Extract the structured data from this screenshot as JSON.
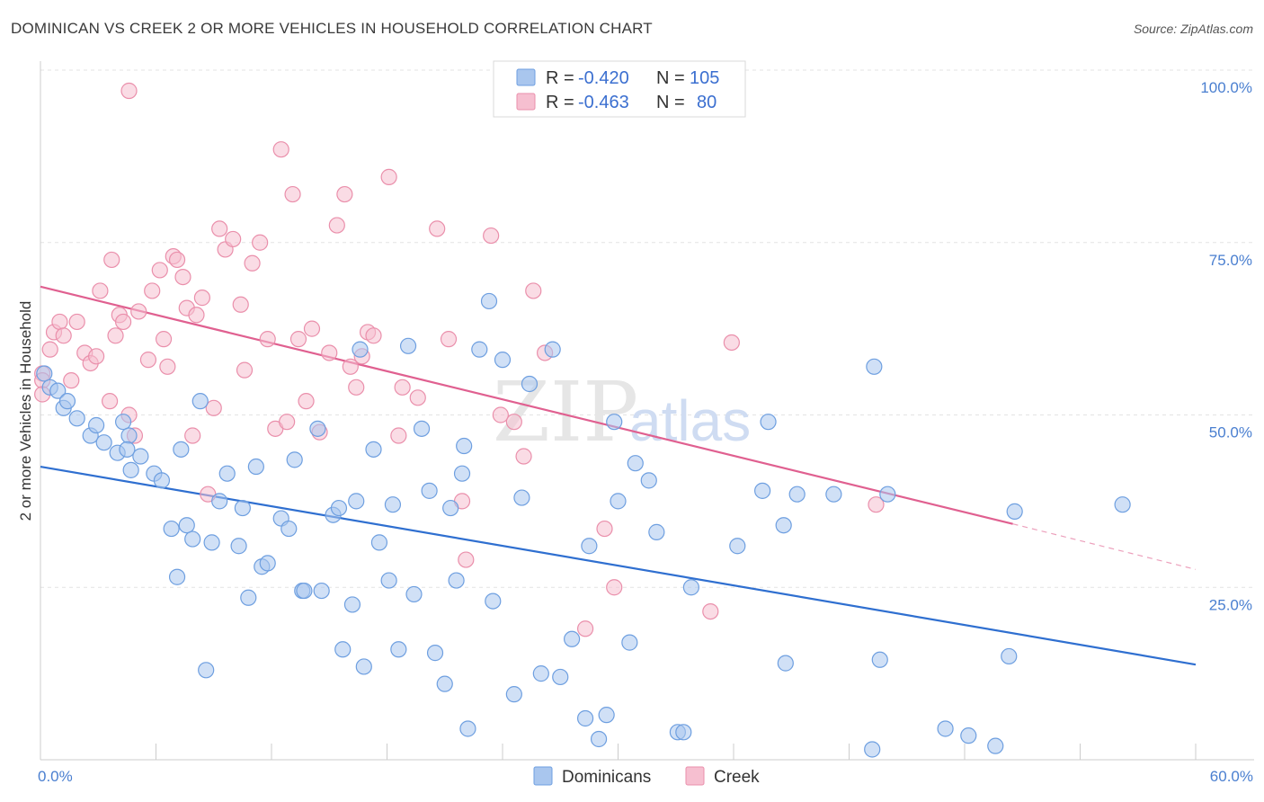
{
  "title": "DOMINICAN VS CREEK 2 OR MORE VEHICLES IN HOUSEHOLD CORRELATION CHART",
  "source": "Source: ZipAtlas.com",
  "watermark": {
    "zip": "ZIP",
    "atlas": "atlas"
  },
  "colors": {
    "dominicans_fill": "#a9c6ee",
    "dominicans_stroke": "#6e9fe0",
    "dominicans_line": "#2f6fd0",
    "creek_fill": "#f6bfd0",
    "creek_stroke": "#ea8fab",
    "creek_line": "#e06090",
    "grid": "#e3e3e3",
    "tick_text": "#4a7fd0"
  },
  "legend": {
    "rows": [
      {
        "r_label": "R =",
        "r_value": "-0.420",
        "n_label": "N =",
        "n_value": "105"
      },
      {
        "r_label": "R =",
        "r_value": "-0.463",
        "n_label": "N =",
        "n_value": "80"
      }
    ]
  },
  "chart_data": {
    "type": "scatter",
    "title": "DOMINICAN VS CREEK 2 OR MORE VEHICLES IN HOUSEHOLD CORRELATION CHART",
    "xlabel": "",
    "ylabel": "2 or more Vehicles in Household",
    "xlim": [
      0,
      60
    ],
    "ylim": [
      0,
      100
    ],
    "x_tick_labels": [
      "0.0%",
      "60.0%"
    ],
    "y_ticks": [
      25,
      50,
      75,
      100
    ],
    "y_tick_labels": [
      "25.0%",
      "50.0%",
      "75.0%",
      "100.0%"
    ],
    "grid": true,
    "legend_position": "top-center",
    "series": [
      {
        "name": "Dominicans",
        "r": -0.42,
        "n": 105,
        "trend": {
          "x": [
            0,
            60
          ],
          "y": [
            42.5,
            13.8
          ]
        },
        "points": [
          [
            0.2,
            56
          ],
          [
            0.5,
            54
          ],
          [
            0.9,
            53.5
          ],
          [
            1.2,
            51
          ],
          [
            1.4,
            52
          ],
          [
            1.9,
            49.5
          ],
          [
            2.6,
            47
          ],
          [
            2.9,
            48.5
          ],
          [
            3.3,
            46
          ],
          [
            4.0,
            44.5
          ],
          [
            4.3,
            49
          ],
          [
            4.6,
            47
          ],
          [
            4.5,
            45
          ],
          [
            4.7,
            42
          ],
          [
            5.2,
            44
          ],
          [
            5.9,
            41.5
          ],
          [
            6.3,
            40.5
          ],
          [
            6.8,
            33.5
          ],
          [
            7.1,
            26.5
          ],
          [
            7.3,
            45
          ],
          [
            7.6,
            34
          ],
          [
            7.9,
            32
          ],
          [
            8.3,
            52
          ],
          [
            8.6,
            13
          ],
          [
            8.9,
            31.5
          ],
          [
            9.3,
            37.5
          ],
          [
            9.7,
            41.5
          ],
          [
            10.3,
            31
          ],
          [
            10.5,
            36.5
          ],
          [
            10.8,
            23.5
          ],
          [
            11.2,
            42.5
          ],
          [
            11.5,
            28
          ],
          [
            11.8,
            28.5
          ],
          [
            12.5,
            35
          ],
          [
            12.9,
            33.5
          ],
          [
            13.2,
            43.5
          ],
          [
            13.6,
            24.5
          ],
          [
            13.7,
            24.5
          ],
          [
            14.4,
            48
          ],
          [
            14.6,
            24.5
          ],
          [
            15.2,
            35.5
          ],
          [
            15.5,
            36.5
          ],
          [
            15.7,
            16
          ],
          [
            16.2,
            22.5
          ],
          [
            16.4,
            37.5
          ],
          [
            16.6,
            59.5
          ],
          [
            16.8,
            13.5
          ],
          [
            17.3,
            45
          ],
          [
            17.6,
            31.5
          ],
          [
            18.1,
            26
          ],
          [
            18.3,
            37
          ],
          [
            18.6,
            16
          ],
          [
            19.1,
            60
          ],
          [
            19.4,
            24
          ],
          [
            19.8,
            48
          ],
          [
            20.2,
            39
          ],
          [
            20.5,
            15.5
          ],
          [
            21.0,
            11
          ],
          [
            21.3,
            36.5
          ],
          [
            21.6,
            26
          ],
          [
            21.9,
            41.5
          ],
          [
            22.0,
            45.5
          ],
          [
            22.2,
            4.5
          ],
          [
            22.8,
            59.5
          ],
          [
            23.3,
            66.5
          ],
          [
            23.5,
            23
          ],
          [
            24.0,
            58
          ],
          [
            24.6,
            9.5
          ],
          [
            25.0,
            38
          ],
          [
            25.4,
            54.5
          ],
          [
            26.0,
            12.5
          ],
          [
            26.6,
            59.5
          ],
          [
            27.0,
            12
          ],
          [
            27.6,
            17.5
          ],
          [
            28.3,
            6
          ],
          [
            28.5,
            31
          ],
          [
            29.0,
            3
          ],
          [
            29.4,
            6.5
          ],
          [
            29.8,
            49
          ],
          [
            30.0,
            37.5
          ],
          [
            30.6,
            17
          ],
          [
            30.9,
            43
          ],
          [
            31.6,
            40.5
          ],
          [
            32.0,
            33
          ],
          [
            33.1,
            4
          ],
          [
            33.4,
            4
          ],
          [
            33.8,
            25
          ],
          [
            36.2,
            31
          ],
          [
            37.5,
            39
          ],
          [
            37.8,
            49
          ],
          [
            38.6,
            34
          ],
          [
            38.7,
            14
          ],
          [
            39.3,
            38.5
          ],
          [
            41.2,
            38.5
          ],
          [
            43.2,
            1.5
          ],
          [
            43.3,
            57
          ],
          [
            43.6,
            14.5
          ],
          [
            44.0,
            38.5
          ],
          [
            47.0,
            4.5
          ],
          [
            48.2,
            3.5
          ],
          [
            49.6,
            2
          ],
          [
            50.3,
            15
          ],
          [
            50.6,
            36
          ],
          [
            56.2,
            37
          ]
        ]
      },
      {
        "name": "Creek",
        "r": -0.463,
        "n": 80,
        "trend": {
          "x": [
            0,
            50.5
          ],
          "y": [
            68.6,
            34.2
          ]
        },
        "trend_dashed": {
          "x": [
            50.5,
            60
          ],
          "y": [
            34.2,
            27.6
          ]
        },
        "points": [
          [
            0.1,
            56
          ],
          [
            0.5,
            59.5
          ],
          [
            0.7,
            62
          ],
          [
            1.0,
            63.5
          ],
          [
            1.2,
            61.5
          ],
          [
            1.6,
            55
          ],
          [
            1.9,
            63.5
          ],
          [
            2.3,
            59
          ],
          [
            2.6,
            57.5
          ],
          [
            2.9,
            58.5
          ],
          [
            3.1,
            68
          ],
          [
            3.6,
            52
          ],
          [
            3.7,
            72.5
          ],
          [
            3.9,
            61.5
          ],
          [
            4.1,
            64.5
          ],
          [
            4.3,
            63.5
          ],
          [
            4.6,
            50
          ],
          [
            4.9,
            47
          ],
          [
            5.1,
            65
          ],
          [
            5.6,
            58
          ],
          [
            5.8,
            68
          ],
          [
            6.2,
            71
          ],
          [
            6.4,
            61
          ],
          [
            6.6,
            57
          ],
          [
            6.9,
            73
          ],
          [
            7.1,
            72.5
          ],
          [
            7.4,
            70
          ],
          [
            7.6,
            65.5
          ],
          [
            7.9,
            47
          ],
          [
            8.1,
            64.5
          ],
          [
            8.4,
            67
          ],
          [
            8.7,
            38.5
          ],
          [
            9.0,
            51
          ],
          [
            9.3,
            77
          ],
          [
            9.6,
            74
          ],
          [
            10.0,
            75.5
          ],
          [
            10.4,
            66
          ],
          [
            10.6,
            56.5
          ],
          [
            11.0,
            72
          ],
          [
            11.4,
            75
          ],
          [
            11.8,
            61
          ],
          [
            12.2,
            48
          ],
          [
            12.5,
            88.5
          ],
          [
            12.8,
            49
          ],
          [
            13.1,
            82
          ],
          [
            13.4,
            61
          ],
          [
            13.8,
            52
          ],
          [
            14.1,
            62.5
          ],
          [
            14.5,
            47.5
          ],
          [
            15.0,
            59
          ],
          [
            15.4,
            77.5
          ],
          [
            15.8,
            82
          ],
          [
            16.1,
            57
          ],
          [
            16.4,
            54
          ],
          [
            16.7,
            58.5
          ],
          [
            17.0,
            62
          ],
          [
            17.3,
            61.5
          ],
          [
            18.1,
            84.5
          ],
          [
            18.6,
            47
          ],
          [
            18.8,
            54
          ],
          [
            19.6,
            52.5
          ],
          [
            20.6,
            77
          ],
          [
            21.2,
            61
          ],
          [
            21.9,
            37.5
          ],
          [
            22.1,
            29
          ],
          [
            23.4,
            76
          ],
          [
            23.9,
            50
          ],
          [
            24.6,
            49
          ],
          [
            25.1,
            44
          ],
          [
            25.6,
            68
          ],
          [
            26.2,
            59
          ],
          [
            28.3,
            19
          ],
          [
            29.3,
            33.5
          ],
          [
            29.8,
            25
          ],
          [
            34.8,
            21.5
          ],
          [
            35.9,
            60.5
          ],
          [
            43.4,
            37
          ],
          [
            4.6,
            97
          ],
          [
            0.1,
            55
          ],
          [
            0.1,
            53
          ]
        ]
      }
    ]
  },
  "bottom_legend": [
    "Dominicans",
    "Creek"
  ]
}
